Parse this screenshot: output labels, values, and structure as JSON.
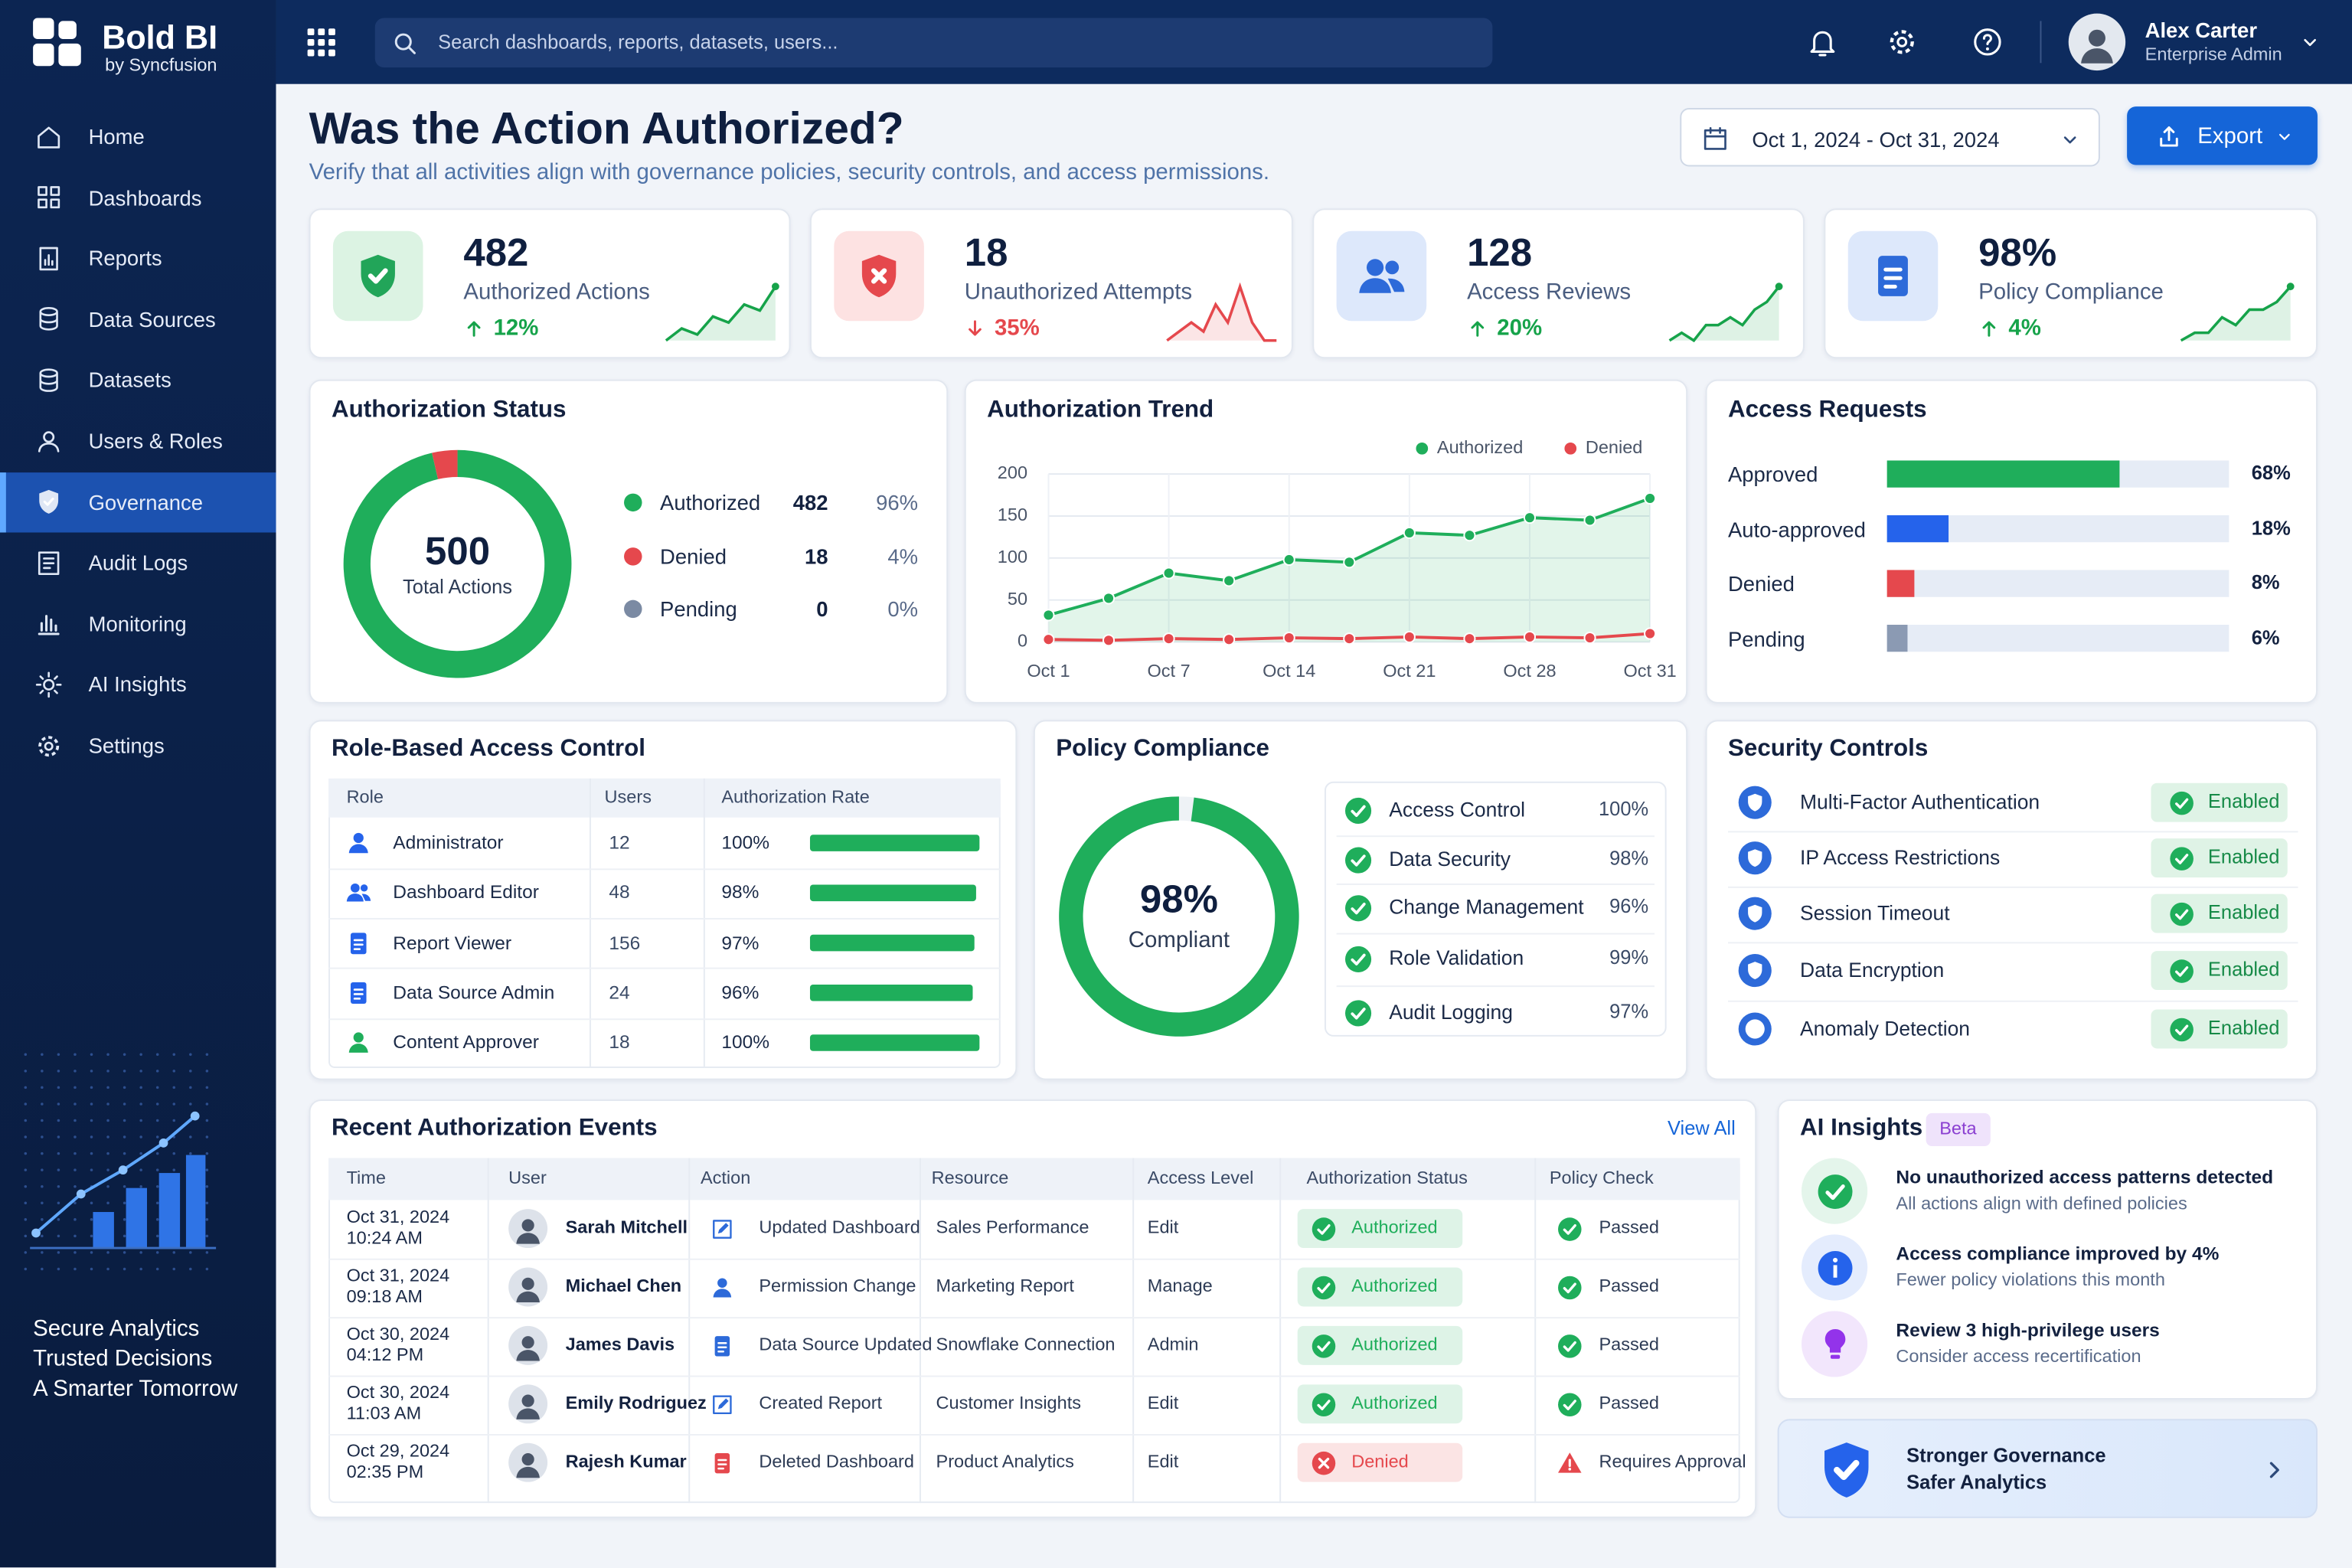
{
  "brand": {
    "name": "Bold BI",
    "tagline": "by Syncfusion"
  },
  "search": {
    "placeholder": "Search dashboards, reports, datasets, users..."
  },
  "user": {
    "name": "Alex Carter",
    "role": "Enterprise Admin"
  },
  "nav": [
    {
      "label": "Home"
    },
    {
      "label": "Dashboards"
    },
    {
      "label": "Reports"
    },
    {
      "label": "Data Sources"
    },
    {
      "label": "Datasets"
    },
    {
      "label": "Users & Roles"
    },
    {
      "label": "Governance",
      "active": true
    },
    {
      "label": "Audit Logs"
    },
    {
      "label": "Monitoring"
    },
    {
      "label": "AI Insights"
    },
    {
      "label": "Settings"
    }
  ],
  "promo": {
    "lines": [
      "Secure Analytics",
      "Trusted Decisions",
      "A Smarter Tomorrow"
    ]
  },
  "header": {
    "title": "Was the Action Authorized?",
    "subtitle": "Verify that all activities align with governance policies, security controls, and access permissions.",
    "date_range": "Oct 1, 2024 - Oct 31, 2024",
    "export_button": "Export"
  },
  "kpis": [
    {
      "value": 482,
      "label": "Authorized Actions",
      "change": "12%",
      "direction": "up",
      "color": "#16a34a",
      "icon_color": "#22a559",
      "icon_bg": "#dcf3e3",
      "sparkline": [
        3,
        5,
        4,
        7,
        6,
        9,
        8,
        12
      ]
    },
    {
      "value": 18,
      "label": "Unauthorized Attempts",
      "change": "35%",
      "direction": "down",
      "color": "#e5484d",
      "icon_color": "#e5484d",
      "icon_bg": "#fde2e2",
      "sparkline": [
        2,
        3,
        4,
        3,
        6,
        4,
        8,
        4,
        2,
        2
      ]
    },
    {
      "value": 128,
      "label": "Access Reviews",
      "change": "20%",
      "direction": "up",
      "color": "#16a34a",
      "icon_color": "#2d6ad9",
      "icon_bg": "#dde8fb",
      "sparkline": [
        3,
        4,
        3,
        5,
        5,
        6,
        5,
        7,
        8,
        10
      ]
    },
    {
      "value": "98%",
      "label": "Policy Compliance",
      "change": "4%",
      "direction": "up",
      "color": "#16a34a",
      "icon_color": "#2d6ad9",
      "icon_bg": "#dde8fb",
      "sparkline": [
        3,
        4,
        4,
        6,
        5,
        7,
        7,
        8,
        10
      ]
    }
  ],
  "authorization_status": {
    "title": "Authorization Status",
    "total": 500,
    "total_label": "Total Actions",
    "items": [
      {
        "name": "Authorized",
        "count": 482,
        "percent": "96%",
        "color": "#1fae5b"
      },
      {
        "name": "Denied",
        "count": 18,
        "percent": "4%",
        "color": "#e5484d"
      },
      {
        "name": "Pending",
        "count": 0,
        "percent": "0%",
        "color": "#7b8aa3"
      }
    ]
  },
  "authorization_trend": {
    "type": "line",
    "title": "Authorization Trend",
    "categories": [
      "Oct 1",
      null,
      "Oct 7",
      null,
      "Oct 14",
      null,
      "Oct 21",
      null,
      "Oct 28",
      null,
      "Oct 31"
    ],
    "series": [
      {
        "name": "Authorized",
        "color": "#1fae5b",
        "values": [
          32,
          52,
          82,
          73,
          98,
          95,
          130,
          127,
          148,
          145,
          171
        ]
      },
      {
        "name": "Denied",
        "color": "#e5484d",
        "values": [
          3,
          2,
          4,
          3,
          5,
          4,
          6,
          4,
          6,
          5,
          10
        ]
      }
    ],
    "ylim": [
      0,
      200
    ],
    "yticks": [
      0,
      50,
      100,
      150,
      200
    ],
    "grid": true
  },
  "access_requests": {
    "type": "bar",
    "title": "Access Requests",
    "categories": [
      "Approved",
      "Auto-approved",
      "Denied",
      "Pending"
    ],
    "values": [
      68,
      18,
      8,
      6
    ],
    "value_labels": [
      "68%",
      "18%",
      "8%",
      "6%"
    ],
    "colors": [
      "#1fae5b",
      "#2563eb",
      "#e5484d",
      "#8b9ab3"
    ],
    "xlim": [
      0,
      100
    ]
  },
  "role_access": {
    "title": "Role-Based Access Control",
    "columns": [
      "Role",
      "Users",
      "Authorization Rate"
    ],
    "xlim": [
      0,
      100
    ],
    "bar_color": "#1fae5b",
    "rows": [
      {
        "role": "Administrator",
        "users": 12,
        "rate": 100,
        "rate_label": "100%",
        "color": "#2563eb"
      },
      {
        "role": "Dashboard Editor",
        "users": 48,
        "rate": 98,
        "rate_label": "98%",
        "color": "#2563eb"
      },
      {
        "role": "Report Viewer",
        "users": 156,
        "rate": 97,
        "rate_label": "97%",
        "color": "#2563eb"
      },
      {
        "role": "Data Source Admin",
        "users": 24,
        "rate": 96,
        "rate_label": "96%",
        "color": "#2563eb"
      },
      {
        "role": "Content Approver",
        "users": 18,
        "rate": 100,
        "rate_label": "100%",
        "color": "#1fae5b"
      }
    ]
  },
  "policy_compliance": {
    "title": "Policy Compliance",
    "score": 98,
    "score_label": "98%",
    "score_caption": "Compliant",
    "range": [
      0,
      100
    ],
    "color": "#1fae5b",
    "items": [
      {
        "name": "Access Control",
        "value": "100%"
      },
      {
        "name": "Data Security",
        "value": "98%"
      },
      {
        "name": "Change Management",
        "value": "96%"
      },
      {
        "name": "Role Validation",
        "value": "99%"
      },
      {
        "name": "Audit Logging",
        "value": "97%"
      }
    ]
  },
  "security_controls": {
    "title": "Security Controls",
    "items": [
      {
        "name": "Multi-Factor Authentication",
        "status": "Enabled"
      },
      {
        "name": "IP Access Restrictions",
        "status": "Enabled"
      },
      {
        "name": "Session Timeout",
        "status": "Enabled"
      },
      {
        "name": "Data Encryption",
        "status": "Enabled"
      },
      {
        "name": "Anomaly Detection",
        "status": "Enabled"
      }
    ]
  },
  "recent_events": {
    "title": "Recent Authorization Events",
    "link": "View All",
    "columns": [
      "Time",
      "User",
      "Action",
      "Resource",
      "Access Level",
      "Authorization Status",
      "Policy Check"
    ],
    "rows": [
      {
        "date": "Oct 31, 2024",
        "time": "10:24 AM",
        "user": "Sarah Mitchell",
        "action": "Updated Dashboard",
        "action_color": "#2d6ad9",
        "resource": "Sales Performance",
        "access": "Edit",
        "status": "Authorized",
        "status_color": "#1fae5b",
        "status_icon": "check",
        "policy": "Passed",
        "policy_color": "#1fae5b",
        "policy_icon": "check"
      },
      {
        "date": "Oct 31, 2024",
        "time": "09:18 AM",
        "user": "Michael Chen",
        "action": "Permission Change",
        "action_color": "#2d6ad9",
        "resource": "Marketing Report",
        "access": "Manage",
        "status": "Authorized",
        "status_color": "#1fae5b",
        "status_icon": "check",
        "policy": "Passed",
        "policy_color": "#1fae5b",
        "policy_icon": "check"
      },
      {
        "date": "Oct 30, 2024",
        "time": "04:12 PM",
        "user": "James Davis",
        "action": "Data Source Updated",
        "action_color": "#2d6ad9",
        "resource": "Snowflake Connection",
        "access": "Admin",
        "status": "Authorized",
        "status_color": "#1fae5b",
        "status_icon": "check",
        "policy": "Passed",
        "policy_color": "#1fae5b",
        "policy_icon": "check"
      },
      {
        "date": "Oct 30, 2024",
        "time": "11:03 AM",
        "user": "Emily Rodriguez",
        "action": "Created Report",
        "action_color": "#2d6ad9",
        "resource": "Customer Insights",
        "access": "Edit",
        "status": "Authorized",
        "status_color": "#1fae5b",
        "status_icon": "check",
        "policy": "Passed",
        "policy_color": "#1fae5b",
        "policy_icon": "check"
      },
      {
        "date": "Oct 29, 2024",
        "time": "02:35 PM",
        "user": "Rajesh Kumar",
        "action": "Deleted Dashboard",
        "action_color": "#e5484d",
        "resource": "Product Analytics",
        "access": "Edit",
        "status": "Denied",
        "status_color": "#e5484d",
        "status_icon": "cross",
        "policy": "Requires Approval",
        "policy_color": "#e5484d",
        "policy_icon": "warning"
      }
    ]
  },
  "ai_insights": {
    "title": "AI Insights",
    "badge": "Beta",
    "items": [
      {
        "title": "No unauthorized access patterns detected",
        "description": "All actions align with defined policies",
        "color": "#1fae5b",
        "icon": "check"
      },
      {
        "title": "Access compliance improved by 4%",
        "description": "Fewer policy violations this month",
        "color": "#2563eb",
        "icon": "info"
      },
      {
        "title": "Review 3 high-privilege users",
        "description": "Consider access recertification",
        "color": "#9333ea",
        "icon": "bulb"
      }
    ]
  },
  "banner": {
    "lines": [
      "Stronger Governance",
      "Safer Analytics"
    ]
  }
}
